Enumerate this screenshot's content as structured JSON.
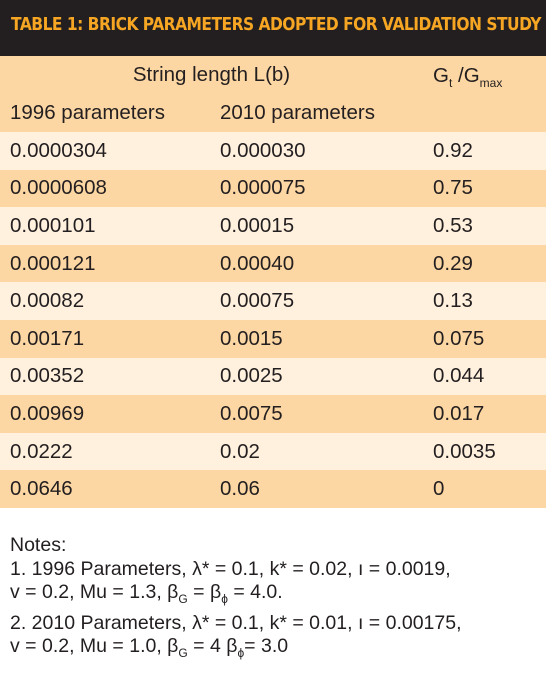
{
  "title": "TABLE 1: BRICK PARAMETERS ADOPTED FOR VALIDATION STUDY",
  "header": {
    "string_length": "String length L(b)",
    "col_1996": "1996 parameters",
    "col_2010": "2010 parameters",
    "g_main": "G",
    "g_t": "t",
    "g_slash": " /G",
    "g_max": "max"
  },
  "rows": [
    {
      "p1996": "0.0000304",
      "p2010": "0.000030",
      "g": "0.92"
    },
    {
      "p1996": "0.0000608",
      "p2010": "0.000075",
      "g": "0.75"
    },
    {
      "p1996": "0.000101",
      "p2010": "0.00015",
      "g": "0.53"
    },
    {
      "p1996": "0.000121",
      "p2010": "0.00040",
      "g": "0.29"
    },
    {
      "p1996": "0.00082",
      "p2010": "0.00075",
      "g": "0.13"
    },
    {
      "p1996": "0.00171",
      "p2010": "0.0015",
      "g": "0.075"
    },
    {
      "p1996": "0.00352",
      "p2010": "0.0025",
      "g": "0.044"
    },
    {
      "p1996": "0.00969",
      "p2010": "0.0075",
      "g": "0.017"
    },
    {
      "p1996": "0.0222",
      "p2010": "0.02",
      "g": "0.0035"
    },
    {
      "p1996": "0.0646",
      "p2010": "0.06",
      "g": "0"
    }
  ],
  "notes": {
    "heading": "Notes:",
    "n1a": "1. 1996 Parameters, λ* = 0.1, k* = 0.02, ı = 0.0019,",
    "n1b_pre": "v = 0.2, Mu = 1.3, β",
    "n1b_sub1": "G",
    "n1b_mid": " = β",
    "n1b_sub2": "ϕ",
    "n1b_post": " = 4.0.",
    "n2a": "2. 2010 Parameters, λ* = 0.1, k* = 0.01, ı = 0.00175,",
    "n2b_pre": "v = 0.2, Mu = 1.0, β",
    "n2b_sub1": "G",
    "n2b_mid": " = 4 β",
    "n2b_sub2": "ϕ",
    "n2b_post": "= 3.0"
  }
}
